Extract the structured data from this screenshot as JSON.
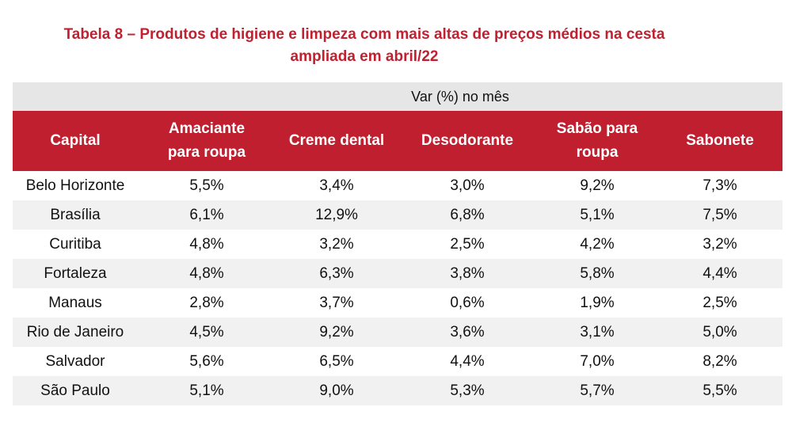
{
  "title": {
    "line1": "Tabela 8 – Produtos de higiene e limpeza com mais altas de preços médios na cesta",
    "line2": "ampliada em abril/22"
  },
  "table": {
    "super_header": "Var (%) no mês",
    "columns": {
      "capital": "Capital",
      "amaciante": [
        "Amaciante",
        "para roupa"
      ],
      "creme": "Creme dental",
      "desodorante": "Desodorante",
      "sabao": [
        "Sabão para",
        "roupa"
      ],
      "sabonete": "Sabonete"
    },
    "rows": [
      {
        "capital": "Belo Horizonte",
        "amaciante": "5,5%",
        "creme": "3,4%",
        "desodorante": "3,0%",
        "sabao": "9,2%",
        "sabonete": "7,3%"
      },
      {
        "capital": "Brasília",
        "amaciante": "6,1%",
        "creme": "12,9%",
        "desodorante": "6,8%",
        "sabao": "5,1%",
        "sabonete": "7,5%"
      },
      {
        "capital": "Curitiba",
        "amaciante": "4,8%",
        "creme": "3,2%",
        "desodorante": "2,5%",
        "sabao": "4,2%",
        "sabonete": "3,2%"
      },
      {
        "capital": "Fortaleza",
        "amaciante": "4,8%",
        "creme": "6,3%",
        "desodorante": "3,8%",
        "sabao": "5,8%",
        "sabonete": "4,4%"
      },
      {
        "capital": "Manaus",
        "amaciante": "2,8%",
        "creme": "3,7%",
        "desodorante": "0,6%",
        "sabao": "1,9%",
        "sabonete": "2,5%"
      },
      {
        "capital": "Rio de Janeiro",
        "amaciante": "4,5%",
        "creme": "9,2%",
        "desodorante": "3,6%",
        "sabao": "3,1%",
        "sabonete": "5,0%"
      },
      {
        "capital": "Salvador",
        "amaciante": "5,6%",
        "creme": "6,5%",
        "desodorante": "4,4%",
        "sabao": "7,0%",
        "sabonete": "8,2%"
      },
      {
        "capital": "São Paulo",
        "amaciante": "5,1%",
        "creme": "9,0%",
        "desodorante": "5,3%",
        "sabao": "5,7%",
        "sabonete": "5,5%"
      }
    ]
  },
  "colors": {
    "title": "#c0202f",
    "header_bg": "#c01f2f",
    "super_header_bg": "#e6e6e6",
    "stripe_bg": "#f1f1f1"
  }
}
